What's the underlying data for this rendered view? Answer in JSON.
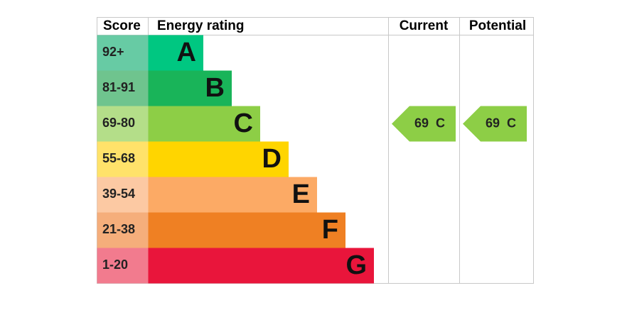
{
  "headers": {
    "score": "Score",
    "energy_rating": "Energy rating",
    "current": "Current",
    "potential": "Potential"
  },
  "bands": [
    {
      "score": "92+",
      "rating": "A",
      "color": "#00c781",
      "score_color": "#67cba4"
    },
    {
      "score": "81-91",
      "rating": "B",
      "color": "#19b459",
      "score_color": "#6fc48e"
    },
    {
      "score": "69-80",
      "rating": "C",
      "color": "#8dce46",
      "score_color": "#b4de89"
    },
    {
      "score": "55-68",
      "rating": "D",
      "color": "#ffd500",
      "score_color": "#ffe26a"
    },
    {
      "score": "39-54",
      "rating": "E",
      "color": "#fcaa65",
      "score_color": "#fcc9a3"
    },
    {
      "score": "21-38",
      "rating": "F",
      "color": "#ef8023",
      "score_color": "#f5ae7b"
    },
    {
      "score": "1-20",
      "rating": "G",
      "color": "#e9153b",
      "score_color": "#f27b8e"
    }
  ],
  "current": {
    "value": 69,
    "rating": "C"
  },
  "potential": {
    "value": 69,
    "rating": "C"
  }
}
